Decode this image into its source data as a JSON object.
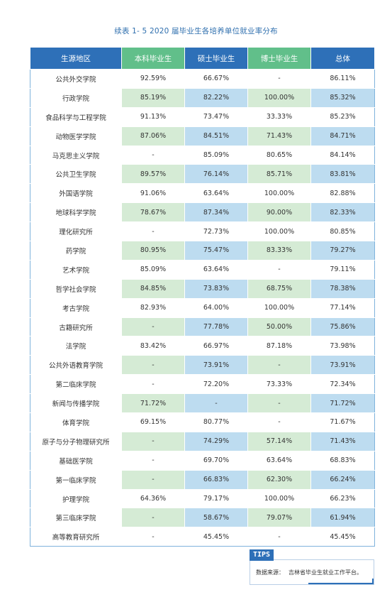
{
  "title": "续表 1- 5  2020 届毕业生各培养单位就业率分布",
  "headers": [
    "生源地区",
    "本科毕业生",
    "硕士毕业生",
    "博士毕业生",
    "总体"
  ],
  "rows": [
    [
      "公共外交学院",
      "92.59%",
      "66.67%",
      "-",
      "86.11%"
    ],
    [
      "行政学院",
      "85.19%",
      "82.22%",
      "100.00%",
      "85.32%"
    ],
    [
      "食品科学与工程学院",
      "91.13%",
      "73.47%",
      "33.33%",
      "85.23%"
    ],
    [
      "动物医学学院",
      "87.06%",
      "84.51%",
      "71.43%",
      "84.71%"
    ],
    [
      "马克思主义学院",
      "-",
      "85.09%",
      "80.65%",
      "84.14%"
    ],
    [
      "公共卫生学院",
      "89.57%",
      "76.14%",
      "85.71%",
      "83.81%"
    ],
    [
      "外国语学院",
      "91.06%",
      "63.64%",
      "100.00%",
      "82.88%"
    ],
    [
      "地球科学学院",
      "78.67%",
      "87.34%",
      "90.00%",
      "82.33%"
    ],
    [
      "理化研究所",
      "-",
      "72.73%",
      "100.00%",
      "80.85%"
    ],
    [
      "药学院",
      "80.95%",
      "75.47%",
      "83.33%",
      "79.27%"
    ],
    [
      "艺术学院",
      "85.09%",
      "63.64%",
      "-",
      "79.11%"
    ],
    [
      "哲学社会学院",
      "84.85%",
      "73.83%",
      "68.75%",
      "78.38%"
    ],
    [
      "考古学院",
      "82.93%",
      "64.00%",
      "100.00%",
      "77.14%"
    ],
    [
      "古籍研究所",
      "-",
      "77.78%",
      "50.00%",
      "75.86%"
    ],
    [
      "法学院",
      "83.42%",
      "66.97%",
      "87.18%",
      "73.98%"
    ],
    [
      "公共外语教育学院",
      "-",
      "73.91%",
      "-",
      "73.91%"
    ],
    [
      "第二临床学院",
      "-",
      "72.20%",
      "73.33%",
      "72.34%"
    ],
    [
      "新闻与传播学院",
      "71.72%",
      "-",
      "-",
      "71.72%"
    ],
    [
      "体育学院",
      "69.15%",
      "80.77%",
      "-",
      "71.67%"
    ],
    [
      "原子与分子物理研究所",
      "-",
      "74.29%",
      "57.14%",
      "71.43%"
    ],
    [
      "基础医学院",
      "-",
      "69.70%",
      "63.64%",
      "68.83%"
    ],
    [
      "第一临床学院",
      "-",
      "66.83%",
      "62.30%",
      "66.24%"
    ],
    [
      "护理学院",
      "64.36%",
      "79.17%",
      "100.00%",
      "66.23%"
    ],
    [
      "第三临床学院",
      "-",
      "58.67%",
      "79.07%",
      "61.94%"
    ],
    [
      "高等教育研究所",
      "-",
      "45.45%",
      "-",
      "45.45%"
    ]
  ],
  "tips": {
    "label": "TIPS",
    "source_label": "数据来源：",
    "source_value": "吉林省毕业生就业工作平台。"
  },
  "colors": {
    "header_blue": "#2e70b8",
    "header_green": "#61bf8a",
    "row_green": "#d5ebd5",
    "row_blue": "#bddcf0"
  }
}
